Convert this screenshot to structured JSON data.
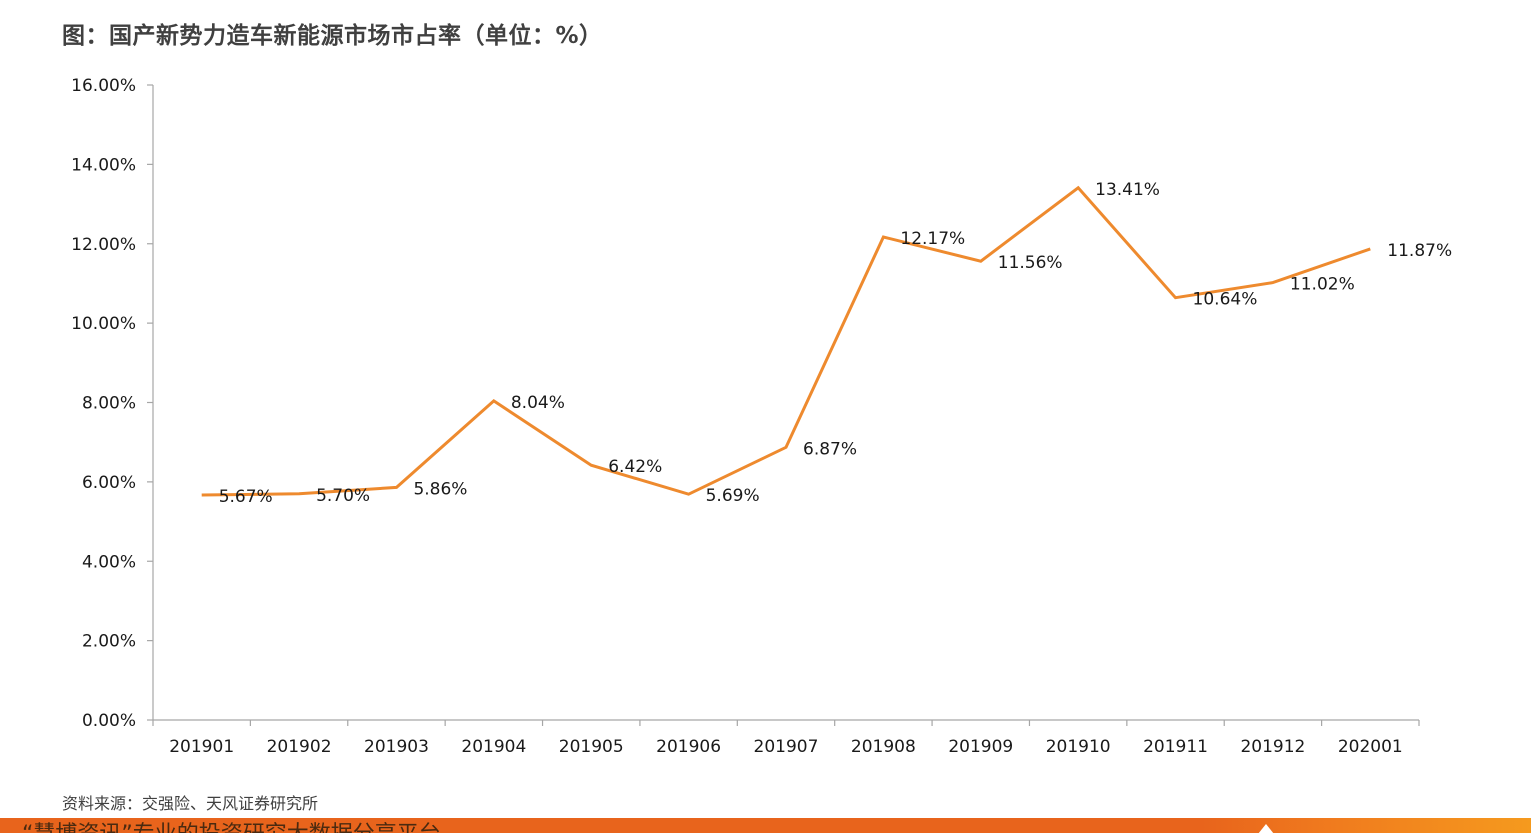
{
  "title": "图：国产新势力造车新能源市场市占率（单位：%）",
  "source": "资料来源：交强险、天风证券研究所",
  "footer_text": "“慧博资讯”专业的投资研究大数据分享平台",
  "colors": {
    "line": "#EE8A2E",
    "axis": "#A6A6A6",
    "footer": "#E8641C"
  },
  "chart_data": {
    "type": "line",
    "title": "图：国产新势力造车新能源市场市占率（单位：%）",
    "xlabel": "",
    "ylabel": "",
    "categories": [
      "201901",
      "201902",
      "201903",
      "201904",
      "201905",
      "201906",
      "201907",
      "201908",
      "201909",
      "201910",
      "201911",
      "201912",
      "202001"
    ],
    "series": [
      {
        "values": [
          5.67,
          5.7,
          5.86,
          8.04,
          6.42,
          5.69,
          6.87,
          12.17,
          11.56,
          13.41,
          10.64,
          11.02,
          11.87
        ],
        "labels": [
          "5.67%",
          "5.70%",
          "5.86%",
          "8.04%",
          "6.42%",
          "5.69%",
          "6.87%",
          "12.17%",
          "11.56%",
          "13.41%",
          "10.64%",
          "11.02%",
          "11.87%"
        ]
      }
    ],
    "ylim": [
      0,
      16
    ],
    "yticks": [
      0,
      2,
      4,
      6,
      8,
      10,
      12,
      14,
      16
    ],
    "ytick_labels": [
      "0.00%",
      "2.00%",
      "4.00%",
      "6.00%",
      "8.00%",
      "10.00%",
      "12.00%",
      "14.00%",
      "16.00%"
    ],
    "grid": false,
    "legend": "none"
  }
}
